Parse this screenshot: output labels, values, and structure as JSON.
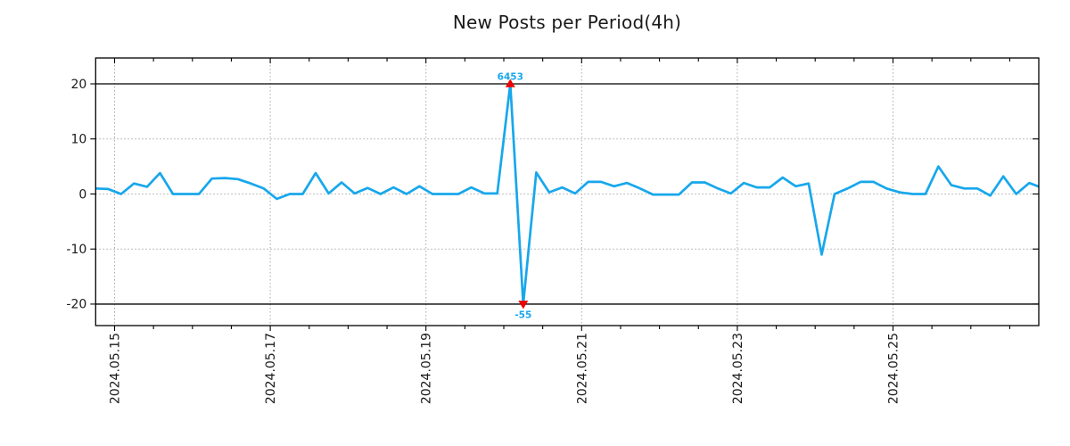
{
  "figure": {
    "title": "New Posts per Period(4h)"
  },
  "colors": {
    "line": "#17a7ec",
    "marker": "#ee0000",
    "annotation": "#17a7ec",
    "grid": "#aaaaaa",
    "axis": "#000000",
    "text": "#1a1a1a",
    "background": "#ffffff"
  },
  "chart_data": {
    "type": "line",
    "title": "New Posts per Period(4h)",
    "grid": true,
    "legend": false,
    "x_axis": {
      "tick_labels": [
        "2024.05.15",
        "2024.05.17",
        "2024.05.19",
        "2024.05.21",
        "2024.05.23",
        "2024.05.25"
      ],
      "tick_interval_days": 2,
      "minor_tick_interval_hours": 12,
      "start": "2024-05-14 18:00",
      "interval_hours": 4,
      "offset_days_before_first_tick": 0.25
    },
    "y_axis": {
      "tick_labels": [
        "20",
        "10",
        "0",
        "-10",
        "-20"
      ],
      "ticks": [
        20,
        10,
        0,
        -10,
        -20
      ],
      "ylim": [
        -23.9,
        24.7
      ],
      "clip_lines": [
        20,
        -20
      ]
    },
    "display_clip": {
      "min": -20,
      "max": 20
    },
    "series": [
      {
        "name": "new_posts_per_4h_period",
        "values": [
          1.0,
          0.9,
          0.0,
          1.9,
          1.3,
          3.8,
          0.0,
          0.0,
          0.0,
          2.8,
          2.9,
          2.7,
          1.9,
          1.0,
          -0.9,
          0.0,
          0.0,
          3.8,
          0.1,
          2.1,
          0.1,
          1.1,
          0.0,
          1.2,
          0.0,
          1.4,
          0.0,
          0.0,
          0.0,
          1.2,
          0.1,
          0.1,
          6453,
          -55,
          3.9,
          0.3,
          1.2,
          0.1,
          2.2,
          2.2,
          1.4,
          2.0,
          1.0,
          -0.1,
          -0.1,
          -0.1,
          2.1,
          2.1,
          1.0,
          0.1,
          2.0,
          1.2,
          1.2,
          3.0,
          1.4,
          1.9,
          -11.0,
          0.0,
          1.0,
          2.2,
          2.2,
          1.0,
          0.3,
          0.0,
          0.0,
          5.0,
          1.6,
          1.0,
          1.0,
          -0.3,
          3.2,
          0.0,
          2.0,
          1.1
        ]
      }
    ],
    "annotations": [
      {
        "text": "6453",
        "point_index": 32,
        "placement": "above",
        "marker": "triangle-up"
      },
      {
        "text": "-55",
        "point_index": 33,
        "placement": "below",
        "marker": "triangle-down"
      }
    ]
  }
}
